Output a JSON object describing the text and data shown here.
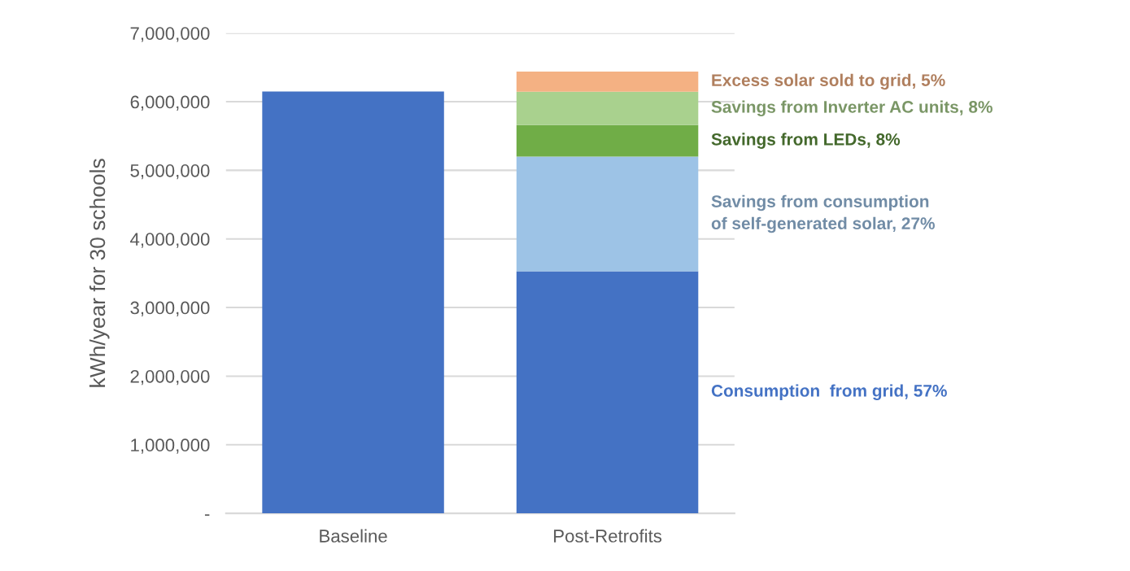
{
  "chart_data": {
    "type": "bar",
    "stacked": true,
    "ylabel": "kWh/year for 30 schools",
    "categories": [
      "Baseline",
      "Post-Retrofits"
    ],
    "series": [
      {
        "name": "Consumption  from grid, 57%",
        "color": "#4472c4",
        "values": [
          6150000,
          3530000
        ]
      },
      {
        "name": "Savings from consumption\nof self-generated solar, 27%",
        "color": "#9dc3e6",
        "values": [
          null,
          1670000
        ]
      },
      {
        "name": "Savings from LEDs, 8%",
        "color": "#70ad47",
        "values": [
          null,
          460000
        ]
      },
      {
        "name": "Savings from Inverter AC units, 8%",
        "color": "#a9d18e",
        "values": [
          null,
          485000
        ]
      },
      {
        "name": "Excess solar sold to grid, 5%",
        "color": "#f4b183",
        "values": [
          null,
          295000
        ]
      }
    ],
    "ylim": [
      0,
      7000000
    ],
    "yticks": [
      {
        "value": 0,
        "label": "-"
      },
      {
        "value": 1000000,
        "label": "1,000,000"
      },
      {
        "value": 2000000,
        "label": "2,000,000"
      },
      {
        "value": 3000000,
        "label": "3,000,000"
      },
      {
        "value": 4000000,
        "label": "4,000,000"
      },
      {
        "value": 5000000,
        "label": "5,000,000"
      },
      {
        "value": 6000000,
        "label": "6,000,000"
      },
      {
        "value": 7000000,
        "label": "7,000,000"
      }
    ],
    "grid": "y",
    "legend": false
  }
}
